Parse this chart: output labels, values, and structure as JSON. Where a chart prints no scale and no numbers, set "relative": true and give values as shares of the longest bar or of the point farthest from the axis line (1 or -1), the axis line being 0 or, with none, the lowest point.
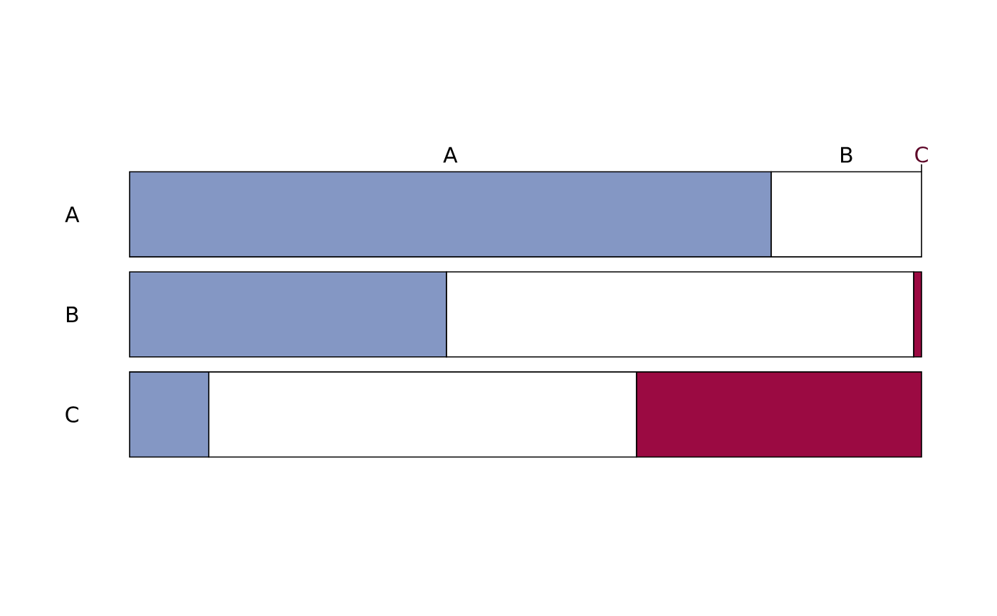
{
  "chart_data": {
    "type": "bar",
    "orientation": "horizontal",
    "stacked": true,
    "relative": true,
    "categories": [
      "A",
      "B",
      "C"
    ],
    "series": [
      {
        "name": "A",
        "color": "#8497c4",
        "values": [
          0.81,
          0.4,
          0.1
        ]
      },
      {
        "name": "B",
        "color": "#ffffff",
        "values": [
          0.19,
          0.59,
          0.54
        ]
      },
      {
        "name": "C",
        "color": "#9b0a42",
        "values": [
          0.0,
          0.01,
          0.36
        ]
      }
    ]
  }
}
